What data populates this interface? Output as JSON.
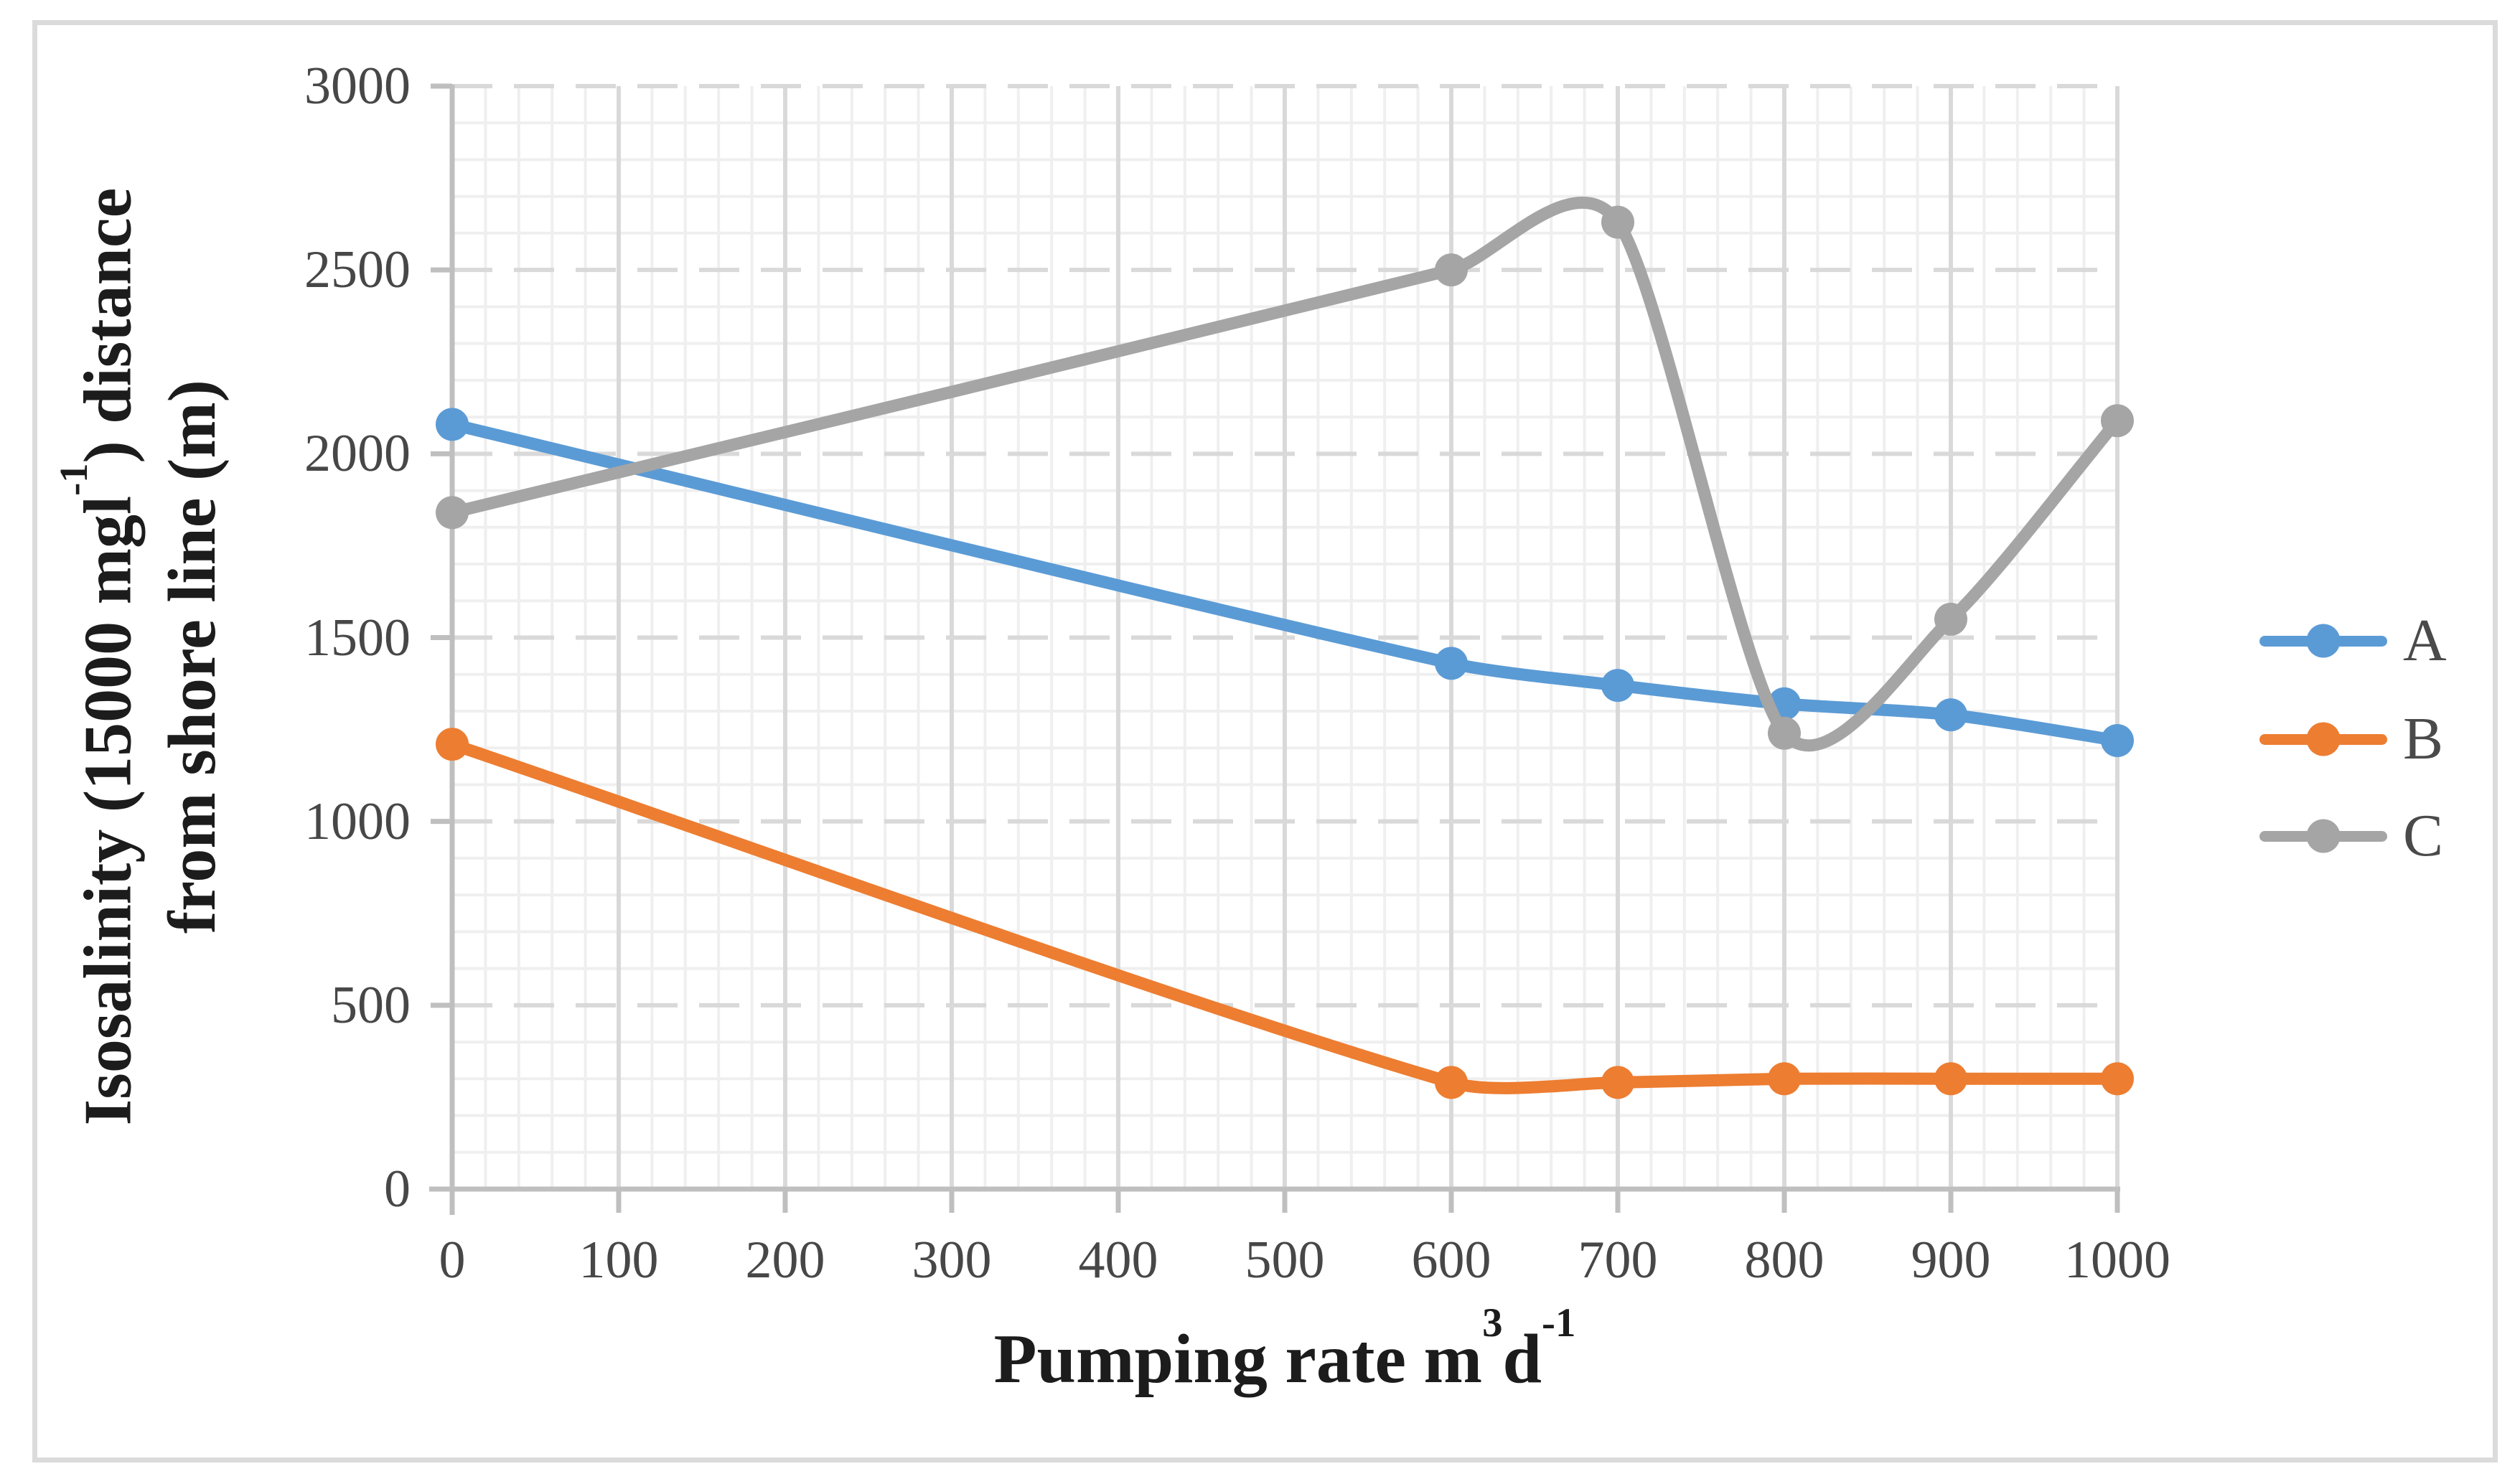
{
  "chart_data": {
    "type": "line",
    "title": "",
    "xlabel": "Pumping rate m3d-1",
    "ylabel": "Isosalinity (15000 mgl-1) distance from shore line (m)",
    "x": [
      0,
      600,
      700,
      800,
      900,
      1000
    ],
    "series": [
      {
        "name": "A",
        "color": "#5B9BD5",
        "values": [
          2080,
          1430,
          1370,
          1320,
          1290,
          1220
        ]
      },
      {
        "name": "B",
        "color": "#ED7D31",
        "values": [
          1210,
          290,
          290,
          300,
          300,
          300
        ]
      },
      {
        "name": "C",
        "color": "#A5A5A5",
        "values": [
          1840,
          2500,
          2630,
          1240,
          1550,
          2090
        ]
      }
    ],
    "xlim": [
      0,
      1000
    ],
    "ylim": [
      0,
      3000
    ],
    "xticks": [
      0,
      100,
      200,
      300,
      400,
      500,
      600,
      700,
      800,
      900,
      1000
    ],
    "yticks": [
      0,
      500,
      1000,
      1500,
      2000,
      2500,
      3000
    ],
    "grid": {
      "major_x_step": 100,
      "major_y_step": 500,
      "minor_x_step": 20,
      "minor_y_step": 100,
      "major_color": "#D9D9D9",
      "minor_color": "#EFEFEF",
      "major_y_style": "dashed"
    },
    "axis_color": "#BFBFBF",
    "tick_text_color": "#474747",
    "smoothed_lines": true,
    "markers": "circle",
    "legend_position": "right",
    "legend_labels": [
      "A",
      "B",
      "C"
    ]
  },
  "titles": {
    "x_pre": "Pumping rate m",
    "x_sup1": "3",
    "x_mid": "d",
    "x_sup2": "-1",
    "y1_pre": "Isosalinity (15000 mgl",
    "y1_sup": "-1",
    "y1_post": ") distance",
    "y2": "from shore line (m)"
  }
}
